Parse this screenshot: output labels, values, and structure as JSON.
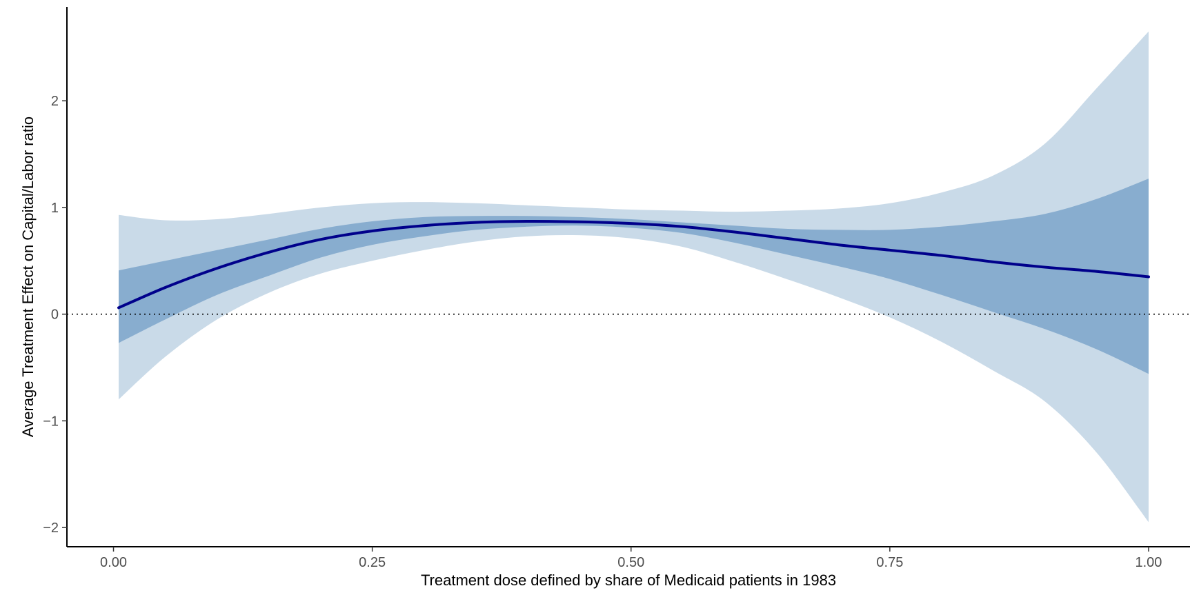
{
  "chart_data": {
    "type": "line",
    "title": "",
    "xlabel": "Treatment dose defined by share of Medicaid patients in 1983",
    "ylabel": "Average Treatment Effect on Capital/Labor ratio",
    "xlim": [
      -0.045,
      1.04
    ],
    "ylim": [
      -2.18,
      2.88
    ],
    "x_ticks": [
      0.0,
      0.25,
      0.5,
      0.75,
      1.0
    ],
    "x_tick_labels": [
      "0.00",
      "0.25",
      "0.50",
      "0.75",
      "1.00"
    ],
    "y_ticks": [
      -2,
      -1,
      0,
      1,
      2
    ],
    "y_tick_labels": [
      "−2",
      "−1",
      "0",
      "1",
      "2"
    ],
    "reference_line": {
      "y": 0,
      "style": "dotted"
    },
    "grid": false,
    "legend": "none",
    "colors": {
      "line": "#00008B",
      "band_inner": "#88ADCF",
      "band_outer": "#C9DAE8",
      "axis": "#000000"
    },
    "x": [
      0.005,
      0.05,
      0.1,
      0.15,
      0.2,
      0.25,
      0.3,
      0.35,
      0.4,
      0.45,
      0.5,
      0.55,
      0.6,
      0.65,
      0.7,
      0.75,
      0.8,
      0.85,
      0.9,
      0.95,
      1.0
    ],
    "series": [
      {
        "estimate": [
          0.06,
          0.25,
          0.43,
          0.58,
          0.7,
          0.78,
          0.83,
          0.86,
          0.87,
          0.865,
          0.85,
          0.82,
          0.77,
          0.71,
          0.65,
          0.6,
          0.55,
          0.49,
          0.44,
          0.4,
          0.35
        ],
        "band_inner": {
          "lower": [
            -0.27,
            -0.05,
            0.18,
            0.36,
            0.53,
            0.65,
            0.73,
            0.79,
            0.82,
            0.83,
            0.81,
            0.76,
            0.67,
            0.56,
            0.45,
            0.33,
            0.18,
            0.02,
            -0.14,
            -0.33,
            -0.56
          ],
          "upper": [
            0.41,
            0.5,
            0.6,
            0.7,
            0.8,
            0.87,
            0.91,
            0.92,
            0.92,
            0.91,
            0.89,
            0.86,
            0.83,
            0.8,
            0.79,
            0.79,
            0.82,
            0.87,
            0.94,
            1.08,
            1.27
          ]
        },
        "band_outer": {
          "lower": [
            -0.8,
            -0.4,
            -0.05,
            0.2,
            0.38,
            0.5,
            0.6,
            0.68,
            0.73,
            0.74,
            0.71,
            0.63,
            0.49,
            0.33,
            0.16,
            -0.03,
            -0.26,
            -0.53,
            -0.82,
            -1.3,
            -1.95
          ],
          "upper": [
            0.93,
            0.88,
            0.89,
            0.94,
            1.0,
            1.04,
            1.05,
            1.04,
            1.02,
            1.0,
            0.98,
            0.97,
            0.96,
            0.97,
            0.99,
            1.04,
            1.14,
            1.3,
            1.6,
            2.12,
            2.65
          ]
        }
      }
    ]
  }
}
